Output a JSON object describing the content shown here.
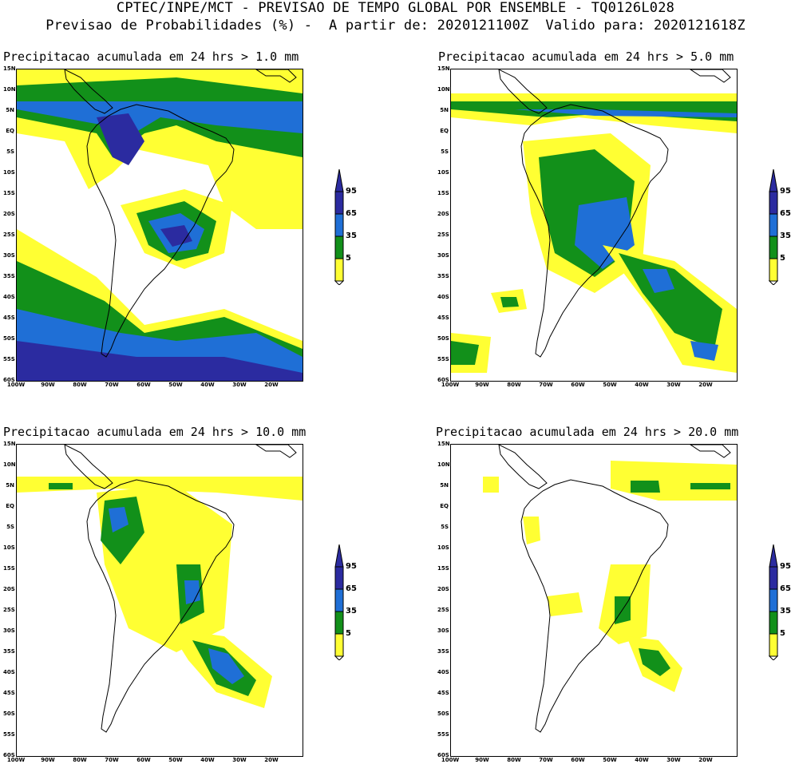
{
  "header": {
    "line1": "CPTEC/INPE/MCT - PREVISAO DE TEMPO GLOBAL POR ENSEMBLE - TQ0126L028",
    "line2": "Previsao de Probabilidades (%) -  A partir de: 2020121100Z  Valido para: 2020121618Z"
  },
  "panels": [
    {
      "title": "Precipitacao acumulada em 24 hrs > 1.0 mm",
      "level": "1.0"
    },
    {
      "title": "Precipitacao acumulada em 24 hrs > 5.0 mm",
      "level": "5.0"
    },
    {
      "title": "Precipitacao acumulada em 24 hrs > 10.0 mm",
      "level": "10.0"
    },
    {
      "title": "Precipitacao acumulada em 24 hrs > 20.0 mm",
      "level": "20.0"
    }
  ],
  "axes": {
    "lat_labels": [
      "15N",
      "10N",
      "5N",
      "EQ",
      "5S",
      "10S",
      "15S",
      "20S",
      "25S",
      "30S",
      "35S",
      "40S",
      "45S",
      "50S",
      "55S",
      "60S"
    ],
    "lon_labels": [
      "100W",
      "90W",
      "80W",
      "70W",
      "60W",
      "50W",
      "40W",
      "30W",
      "20W"
    ]
  },
  "colorbar": {
    "labels": [
      "95",
      "65",
      "35",
      "5"
    ],
    "colors": [
      "#2b2ba0",
      "#1f6fd6",
      "#12901a",
      "#ffff33"
    ]
  },
  "colors": {
    "yellow": "#ffff33",
    "green": "#12901a",
    "blue": "#1f6fd6",
    "darkblue": "#2b2ba0"
  }
}
